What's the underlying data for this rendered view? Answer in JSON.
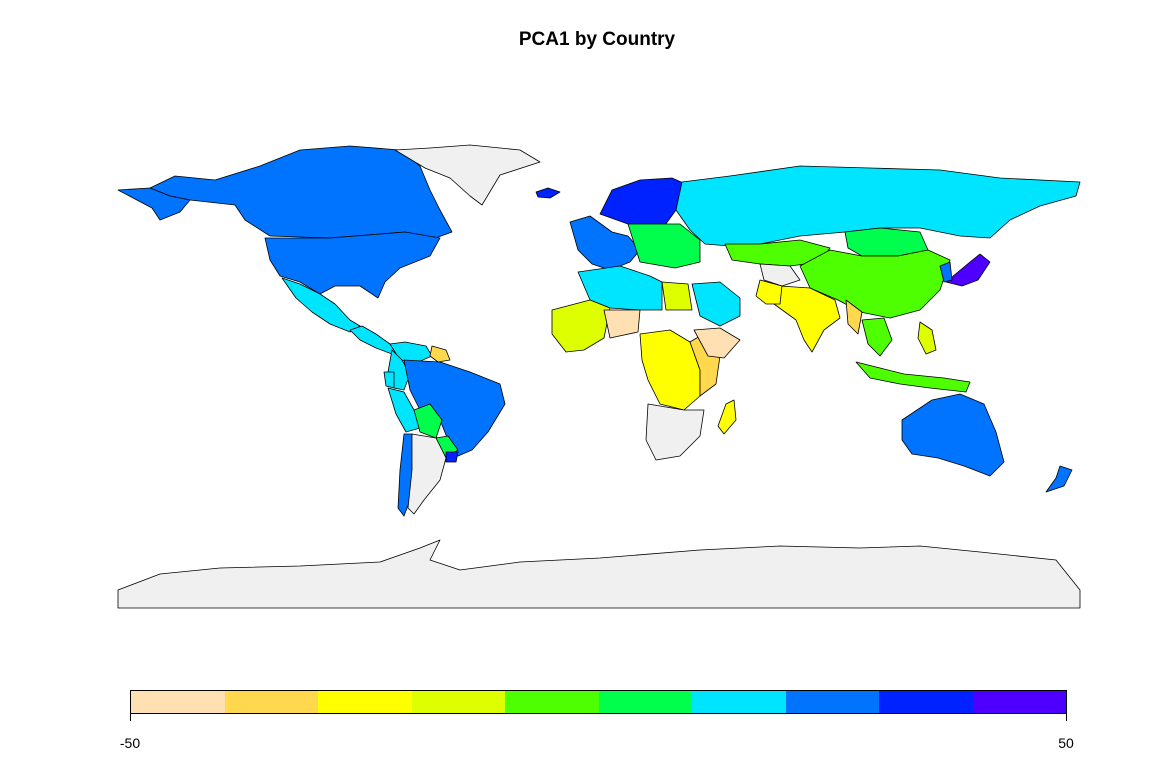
{
  "title": "PCA1 by Country",
  "colors": {
    "missing": "#f0f0f0",
    "border": "#000000"
  },
  "legend": {
    "min_label": "-50",
    "max_label": "50",
    "min": -50,
    "max": 50,
    "colors": [
      "#ffe0b2",
      "#ffd84d",
      "#ffff00",
      "#ddff00",
      "#4dff00",
      "#00ff4d",
      "#00e5ff",
      "#0073ff",
      "#0022ff",
      "#4d00ff"
    ]
  },
  "map_data": {
    "type": "choropleth",
    "variable": "PCA1",
    "regions": [
      {
        "name": "Canada",
        "bin": 7
      },
      {
        "name": "United States",
        "bin": 7
      },
      {
        "name": "Alaska",
        "bin": 7
      },
      {
        "name": "Greenland",
        "bin": null
      },
      {
        "name": "Iceland",
        "bin": 8
      },
      {
        "name": "Mexico",
        "bin": 6
      },
      {
        "name": "Central America",
        "bin": 6
      },
      {
        "name": "Venezuela",
        "bin": 6
      },
      {
        "name": "Colombia",
        "bin": 6
      },
      {
        "name": "Guyana Suriname",
        "bin": 1
      },
      {
        "name": "Peru",
        "bin": 6
      },
      {
        "name": "Ecuador",
        "bin": 6
      },
      {
        "name": "Brazil",
        "bin": 7
      },
      {
        "name": "Bolivia",
        "bin": 5
      },
      {
        "name": "Paraguay",
        "bin": 5
      },
      {
        "name": "Chile",
        "bin": 7
      },
      {
        "name": "Argentina",
        "bin": null
      },
      {
        "name": "Uruguay",
        "bin": 8
      },
      {
        "name": "Scandinavia",
        "bin": 8
      },
      {
        "name": "Western Europe",
        "bin": 7
      },
      {
        "name": "Eastern Europe",
        "bin": 5
      },
      {
        "name": "Russia",
        "bin": 6
      },
      {
        "name": "Kazakhstan",
        "bin": 4
      },
      {
        "name": "Mongolia",
        "bin": 5
      },
      {
        "name": "China",
        "bin": 4
      },
      {
        "name": "Japan",
        "bin": 9
      },
      {
        "name": "Korea",
        "bin": 7
      },
      {
        "name": "Central Asia",
        "bin": null
      },
      {
        "name": "India",
        "bin": 2
      },
      {
        "name": "Pakistan",
        "bin": 2
      },
      {
        "name": "Myanmar",
        "bin": 1
      },
      {
        "name": "Southeast Asia",
        "bin": 4
      },
      {
        "name": "Indonesia",
        "bin": 4
      },
      {
        "name": "Philippines",
        "bin": 3
      },
      {
        "name": "Australia",
        "bin": 7
      },
      {
        "name": "New Zealand",
        "bin": 7
      },
      {
        "name": "North Africa",
        "bin": 6
      },
      {
        "name": "Egypt",
        "bin": 3
      },
      {
        "name": "Saudi Arabia",
        "bin": 6
      },
      {
        "name": "West Africa",
        "bin": 3
      },
      {
        "name": "Niger",
        "bin": 0
      },
      {
        "name": "Central Africa",
        "bin": 2
      },
      {
        "name": "East Africa",
        "bin": 1
      },
      {
        "name": "Ethiopia",
        "bin": 0
      },
      {
        "name": "Southern Africa",
        "bin": null
      },
      {
        "name": "Madagascar",
        "bin": 2
      },
      {
        "name": "Antarctica",
        "bin": null
      }
    ]
  }
}
